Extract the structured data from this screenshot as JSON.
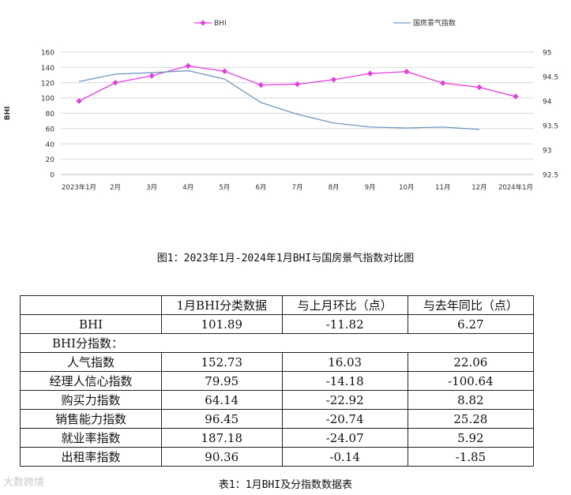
{
  "chart_data": {
    "type": "line",
    "categories": [
      "2023年1月",
      "2月",
      "3月",
      "4月",
      "5月",
      "6月",
      "7月",
      "8月",
      "9月",
      "10月",
      "11月",
      "12月",
      "2024年1月"
    ],
    "series": [
      {
        "name": "BHI",
        "axis": "left",
        "color": "#e83ce0",
        "values": [
          96,
          120,
          129,
          142,
          135,
          117,
          118,
          124,
          132,
          134.5,
          119.5,
          114,
          102
        ]
      },
      {
        "name": "国房景气指数",
        "axis": "right",
        "color": "#6e9ac4",
        "values": [
          94.4,
          94.55,
          94.58,
          94.62,
          94.45,
          93.97,
          93.73,
          93.55,
          93.47,
          93.45,
          93.47,
          93.42,
          null
        ]
      }
    ],
    "ylabel": "BHI",
    "y_left": {
      "min": 0,
      "max": 160,
      "ticks": [
        "0",
        "20",
        "40",
        "60",
        "80",
        "100",
        "120",
        "140",
        "160"
      ]
    },
    "y_right": {
      "min": 92.5,
      "max": 95,
      "ticks": [
        "92.5",
        "93",
        "93.5",
        "94",
        "94.5",
        "95"
      ]
    },
    "legend": "top"
  },
  "figure_caption": "图1：2023年1月-2024年1月BHI与国房景气指数对比图",
  "table": {
    "headers": [
      "",
      "1月BHI分类数据",
      "与上月环比（点）",
      "与去年同比（点）"
    ],
    "bhi_row": {
      "label": "BHI",
      "value": "101.89",
      "mom": "-11.82",
      "yoy": "6.27"
    },
    "section_label": "BHI分指数：",
    "sub_rows": [
      {
        "label": "人气指数",
        "value": "152.73",
        "mom": "16.03",
        "yoy": "22.06"
      },
      {
        "label": "经理人信心指数",
        "value": "79.95",
        "mom": "-14.18",
        "yoy": "-100.64"
      },
      {
        "label": "购买力指数",
        "value": "64.14",
        "mom": "-22.92",
        "yoy": "8.82"
      },
      {
        "label": "销售能力指数",
        "value": "96.45",
        "mom": "-20.74",
        "yoy": "25.28"
      },
      {
        "label": "就业率指数",
        "value": "187.18",
        "mom": "-24.07",
        "yoy": "5.92"
      },
      {
        "label": "出租率指数",
        "value": "90.36",
        "mom": "-0.14",
        "yoy": "-1.85"
      }
    ]
  },
  "table_caption": "表1：1月BHI及分指数数据表",
  "watermark": "大数跨境"
}
